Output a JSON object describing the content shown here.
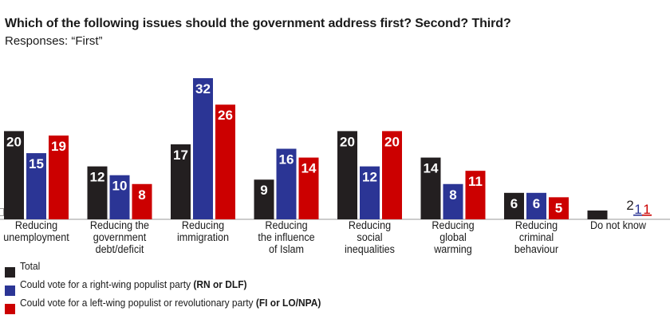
{
  "header": {
    "title": "Which of the following issues should the government address first? Second? Third?",
    "subtitle": "Responses: “First”"
  },
  "legend": [
    {
      "prefix": "Total",
      "rest": "",
      "bold": "",
      "color": "#231f20"
    },
    {
      "prefix": "Could vote for",
      "rest": " a right-wing populist party ",
      "bold": "(RN or DLF)",
      "color": "#2b3595"
    },
    {
      "prefix": "Could vote for",
      "rest": " a left-wing populist or revolutionary party ",
      "bold": "(FI or LO/NPA)",
      "color": "#cc0000"
    }
  ],
  "chart_data": {
    "type": "bar",
    "title": "Which of the following issues should the government address first? Second? Third?",
    "subtitle": "Responses: “First”",
    "xlabel": "",
    "ylabel": "",
    "ylim": [
      0,
      32
    ],
    "grid": false,
    "legend_position": "bottom-left",
    "categories": [
      [
        "Reducing",
        "unemployment"
      ],
      [
        "Reducing the",
        "government",
        "debt/deficit"
      ],
      [
        "Reducing",
        "immigration"
      ],
      [
        "Reducing",
        "the influence",
        "of Islam"
      ],
      [
        "Reducing",
        "social",
        "inequalities"
      ],
      [
        "Reducing",
        "global",
        "warming"
      ],
      [
        "Reducing",
        "criminal",
        "behaviour"
      ],
      [
        "Do not know"
      ]
    ],
    "series": [
      {
        "name": "Total",
        "color": "#231f20",
        "values": [
          20,
          12,
          17,
          9,
          20,
          14,
          6,
          2
        ]
      },
      {
        "name": "Could vote for a right-wing populist party (RN or DLF)",
        "color": "#2b3595",
        "values": [
          15,
          10,
          32,
          16,
          12,
          8,
          6,
          1
        ]
      },
      {
        "name": "Could vote for a left-wing populist or revolutionary party (FI or LO/NPA)",
        "color": "#cc0000",
        "values": [
          19,
          8,
          26,
          14,
          20,
          11,
          5,
          1
        ]
      }
    ]
  }
}
